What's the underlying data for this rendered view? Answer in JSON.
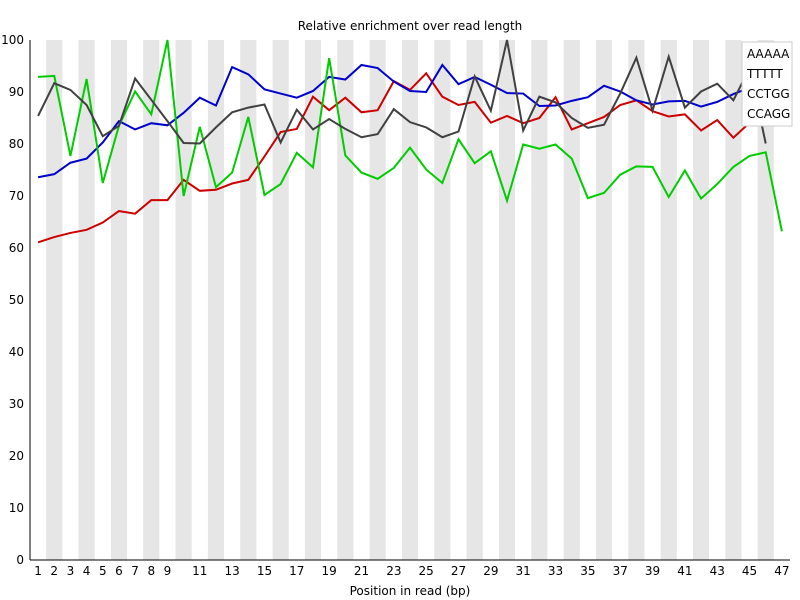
{
  "chart_data": {
    "type": "line",
    "title": "Relative enrichment over read length",
    "xlabel": "Position in read (bp)",
    "ylabel": "",
    "ylim": [
      0,
      100
    ],
    "yticks": [
      0,
      10,
      20,
      30,
      40,
      50,
      60,
      70,
      80,
      90,
      100
    ],
    "x": [
      1,
      2,
      3,
      4,
      5,
      6,
      7,
      8,
      9,
      10,
      11,
      12,
      13,
      14,
      15,
      16,
      17,
      18,
      19,
      20,
      21,
      22,
      23,
      24,
      25,
      26,
      27,
      28,
      29,
      30,
      31,
      32,
      33,
      34,
      35,
      36,
      37,
      38,
      39,
      40,
      41,
      42,
      43,
      44,
      45,
      46,
      47
    ],
    "xtick_labels": [
      "1",
      "2",
      "3",
      "4",
      "5",
      "6",
      "7",
      "8",
      "9",
      "11",
      "13",
      "15",
      "17",
      "19",
      "21",
      "23",
      "25",
      "27",
      "29",
      "31",
      "33",
      "35",
      "37",
      "39",
      "41",
      "43",
      "45",
      "47"
    ],
    "background": "alternating grey/white vertical bands per position",
    "legend_position": "top-right",
    "series": [
      {
        "name": "AAAAA",
        "color": "#cc0000",
        "values": [
          61.1,
          62.1,
          62.9,
          63.5,
          64.9,
          67.1,
          66.6,
          69.2,
          69.2,
          73.1,
          71.0,
          71.2,
          72.4,
          73.1,
          77.6,
          82.3,
          82.9,
          89.1,
          86.5,
          88.9,
          86.1,
          86.5,
          92.1,
          90.4,
          93.6,
          89.1,
          87.5,
          88.1,
          84.1,
          85.4,
          84.0,
          85.0,
          89.0,
          82.8,
          84.0,
          85.2,
          87.5,
          88.4,
          86.3,
          85.3,
          85.7,
          82.6,
          84.6,
          81.2,
          84.1,
          86.0,
          null
        ]
      },
      {
        "name": "TTTTT",
        "color": "#0000cc",
        "values": [
          73.6,
          74.2,
          76.4,
          77.2,
          80.3,
          84.4,
          82.8,
          84.0,
          83.6,
          86.0,
          88.9,
          87.4,
          94.8,
          93.4,
          90.5,
          89.7,
          88.9,
          90.2,
          92.9,
          92.4,
          95.2,
          94.6,
          92.0,
          90.2,
          90.0,
          95.2,
          91.5,
          92.9,
          91.4,
          89.8,
          89.7,
          87.3,
          87.4,
          88.3,
          89.0,
          91.2,
          90.1,
          88.4,
          87.6,
          88.2,
          88.3,
          87.2,
          88.1,
          89.6,
          90.8,
          91.5,
          null
        ]
      },
      {
        "name": "CCTGG",
        "color": "#00cc00",
        "values": [
          92.9,
          93.1,
          77.7,
          92.5,
          72.5,
          83.5,
          90.1,
          85.7,
          100.0,
          70.0,
          83.3,
          71.7,
          74.5,
          85.2,
          70.2,
          72.3,
          78.3,
          75.5,
          96.5,
          77.8,
          74.5,
          73.3,
          75.4,
          79.3,
          75.1,
          72.5,
          80.9,
          76.3,
          78.6,
          69.1,
          79.9,
          79.1,
          79.9,
          77.2,
          69.6,
          70.6,
          74.1,
          75.7,
          75.6,
          69.8,
          74.9,
          69.5,
          72.3,
          75.6,
          77.7,
          78.4,
          63.2
        ]
      },
      {
        "name": "CCAGG",
        "color": "#404040",
        "values": [
          85.4,
          91.7,
          90.4,
          87.5,
          81.5,
          83.5,
          92.6,
          88.5,
          84.4,
          80.2,
          80.1,
          83.2,
          86.1,
          87.0,
          87.6,
          80.3,
          86.6,
          82.8,
          84.8,
          82.9,
          81.3,
          81.9,
          86.7,
          84.2,
          83.2,
          81.3,
          82.4,
          93.0,
          86.4,
          100.0,
          82.6,
          89.1,
          88.0,
          85.0,
          83.1,
          83.7,
          89.7,
          96.6,
          86.4,
          96.8,
          87.0,
          90.1,
          91.6,
          88.4,
          94.6,
          80.1,
          null
        ]
      }
    ]
  }
}
